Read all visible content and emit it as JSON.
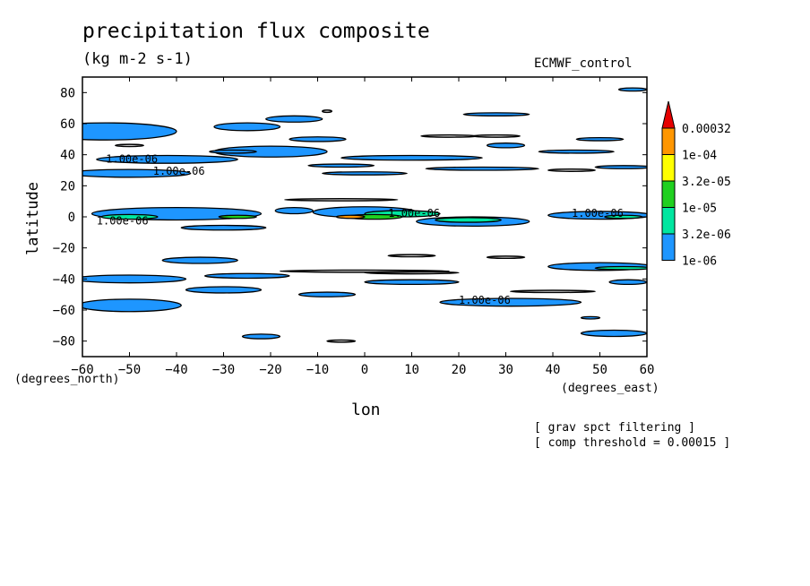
{
  "chart_data": {
    "type": "contour",
    "title": "precipitation flux composite",
    "units": "(kg m-2 s-1)",
    "model": "ECMWF_control",
    "xlabel": "lon",
    "ylabel": "latitude",
    "x_unit_label": "(degrees_east)",
    "y_unit_label": "(degrees_north)",
    "xlim": [
      -60,
      60
    ],
    "ylim": [
      -90,
      90
    ],
    "xticks": [
      -60,
      -50,
      -40,
      -30,
      -20,
      -10,
      0,
      10,
      20,
      30,
      40,
      50,
      60
    ],
    "yticks": [
      -80,
      -60,
      -40,
      -20,
      0,
      20,
      40,
      60,
      80
    ],
    "contour_label": "1.00e-06",
    "legend": {
      "position": "right",
      "levels": [
        "1e-06",
        "3.2e-06",
        "1e-05",
        "3.2e-05",
        "1e-04",
        "0.00032"
      ],
      "colors": [
        "#1e96ff",
        "#00e6a0",
        "#20d020",
        "#ffff00",
        "#ff9600",
        "#e60000"
      ]
    },
    "notes": [
      "[ grav spct filtering ]",
      "[ comp threshold = 0.00015 ]"
    ],
    "regions": [
      {
        "lon": -55,
        "lat": 55,
        "w": 30,
        "h": 11,
        "level": 0
      },
      {
        "lon": -15,
        "lat": 63,
        "w": 12,
        "h": 4,
        "level": 0
      },
      {
        "lon": -25,
        "lat": 58,
        "w": 14,
        "h": 5,
        "level": 0
      },
      {
        "lon": -10,
        "lat": 50,
        "w": 12,
        "h": 3,
        "level": 0
      },
      {
        "lon": -20,
        "lat": 42,
        "w": 24,
        "h": 7,
        "level": 0
      },
      {
        "lon": -42,
        "lat": 37,
        "w": 30,
        "h": 5,
        "level": 0
      },
      {
        "lon": -50,
        "lat": 28,
        "w": 26,
        "h": 5,
        "level": 0
      },
      {
        "lon": -28,
        "lat": 42,
        "w": 10,
        "h": 2,
        "level": 0
      },
      {
        "lon": -5,
        "lat": 33,
        "w": 14,
        "h": 2,
        "level": 0
      },
      {
        "lon": 0,
        "lat": 28,
        "w": 18,
        "h": 2,
        "level": 0
      },
      {
        "lon": 10,
        "lat": 38,
        "w": 30,
        "h": 3,
        "level": 0
      },
      {
        "lon": 25,
        "lat": 31,
        "w": 24,
        "h": 2,
        "level": 0
      },
      {
        "lon": 55,
        "lat": 32,
        "w": 12,
        "h": 2,
        "level": 0
      },
      {
        "lon": 30,
        "lat": 46,
        "w": 8,
        "h": 3,
        "level": 0
      },
      {
        "lon": 50,
        "lat": 50,
        "w": 10,
        "h": 2,
        "level": 0
      },
      {
        "lon": 45,
        "lat": 42,
        "w": 16,
        "h": 2,
        "level": 0
      },
      {
        "lon": 28,
        "lat": 66,
        "w": 14,
        "h": 2,
        "level": 0
      },
      {
        "lon": 57,
        "lat": 82,
        "w": 6,
        "h": 2,
        "level": 0
      },
      {
        "lon": -40,
        "lat": 2,
        "w": 36,
        "h": 8,
        "level": 0
      },
      {
        "lon": -50,
        "lat": 0,
        "w": 12,
        "h": 3,
        "level": 1
      },
      {
        "lon": -30,
        "lat": -7,
        "w": 18,
        "h": 3,
        "level": 0
      },
      {
        "lon": -27,
        "lat": 0,
        "w": 8,
        "h": 2,
        "level": 2
      },
      {
        "lon": 0,
        "lat": 3,
        "w": 22,
        "h": 7,
        "level": 0
      },
      {
        "lon": 8,
        "lat": 2,
        "w": 16,
        "h": 4,
        "level": 1
      },
      {
        "lon": 2,
        "lat": 0,
        "w": 12,
        "h": 3,
        "level": 2
      },
      {
        "lon": -3,
        "lat": 0,
        "w": 6,
        "h": 2,
        "level": 4
      },
      {
        "lon": 23,
        "lat": -3,
        "w": 24,
        "h": 6,
        "level": 0
      },
      {
        "lon": 22,
        "lat": -2,
        "w": 14,
        "h": 3,
        "level": 1
      },
      {
        "lon": 50,
        "lat": 1,
        "w": 22,
        "h": 5,
        "level": 0
      },
      {
        "lon": 55,
        "lat": 0,
        "w": 8,
        "h": 2,
        "level": 1
      },
      {
        "lon": -15,
        "lat": 4,
        "w": 8,
        "h": 4,
        "level": 0
      },
      {
        "lon": -35,
        "lat": -28,
        "w": 16,
        "h": 4,
        "level": 0
      },
      {
        "lon": -50,
        "lat": -40,
        "w": 24,
        "h": 5,
        "level": 0
      },
      {
        "lon": -25,
        "lat": -38,
        "w": 18,
        "h": 3,
        "level": 0
      },
      {
        "lon": -30,
        "lat": -47,
        "w": 16,
        "h": 4,
        "level": 0
      },
      {
        "lon": -50,
        "lat": -57,
        "w": 22,
        "h": 8,
        "level": 0
      },
      {
        "lon": -8,
        "lat": -50,
        "w": 12,
        "h": 3,
        "level": 0
      },
      {
        "lon": 10,
        "lat": -42,
        "w": 20,
        "h": 3,
        "level": 0
      },
      {
        "lon": 31,
        "lat": -55,
        "w": 30,
        "h": 5,
        "level": 0
      },
      {
        "lon": 50,
        "lat": -32,
        "w": 22,
        "h": 5,
        "level": 0
      },
      {
        "lon": 55,
        "lat": -33,
        "w": 12,
        "h": 2,
        "level": 1
      },
      {
        "lon": 56,
        "lat": -42,
        "w": 8,
        "h": 3,
        "level": 0
      },
      {
        "lon": 53,
        "lat": -75,
        "w": 14,
        "h": 4,
        "level": 0
      },
      {
        "lon": -22,
        "lat": -77,
        "w": 8,
        "h": 3,
        "level": 0
      },
      {
        "lon": 48,
        "lat": -65,
        "w": 4,
        "h": 1.5,
        "level": 0
      }
    ],
    "contour_lines": [
      {
        "lon": 0,
        "lat": -35,
        "w": 36
      },
      {
        "lon": 10,
        "lat": -36,
        "w": 20
      },
      {
        "lon": 40,
        "lat": -48,
        "w": 18
      },
      {
        "lon": 30,
        "lat": -26,
        "w": 8
      },
      {
        "lon": 10,
        "lat": -25,
        "w": 10
      },
      {
        "lon": -5,
        "lat": -80,
        "w": 6
      },
      {
        "lon": 44,
        "lat": 30,
        "w": 10
      },
      {
        "lon": 28,
        "lat": 52,
        "w": 10
      },
      {
        "lon": 18,
        "lat": 52,
        "w": 12
      },
      {
        "lon": -8,
        "lat": 68,
        "w": 2
      },
      {
        "lon": -5,
        "lat": 11,
        "w": 24
      },
      {
        "lon": -50,
        "lat": 46,
        "w": 6
      }
    ]
  }
}
